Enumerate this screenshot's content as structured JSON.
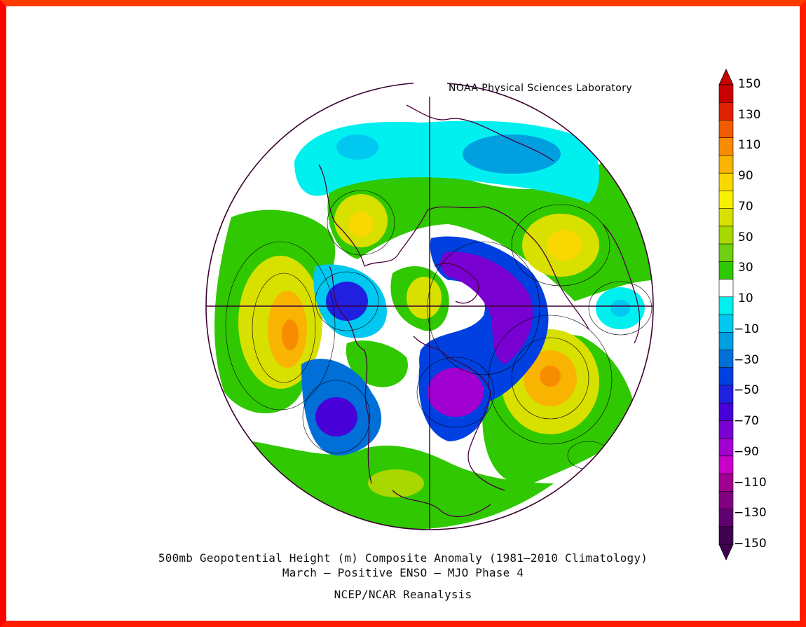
{
  "header_label": "NOAA Physical Sciences Laboratory",
  "caption": {
    "line1": "500mb Geopotential Height (m) Composite Anomaly (1981–2010 Climatology)",
    "line2": "March – Positive ENSO – MJO Phase 4",
    "line3": "NCEP/NCAR Reanalysis"
  },
  "colorbar": {
    "labels": [
      "150",
      "130",
      "110",
      "90",
      "70",
      "50",
      "30",
      "10",
      "−10",
      "−30",
      "−50",
      "−70",
      "−90",
      "−110",
      "−130",
      "−150"
    ],
    "colors": [
      "#c80000",
      "#e02000",
      "#f05a00",
      "#f88c00",
      "#f8b400",
      "#f8d800",
      "#f8f000",
      "#d8e000",
      "#a8d800",
      "#70d010",
      "#30c800",
      "#ffffff",
      "#00f0f0",
      "#00c8f0",
      "#00a0e0",
      "#0070d8",
      "#0040e0",
      "#2020e0",
      "#4800d8",
      "#7800d0",
      "#a000d0",
      "#c800c8",
      "#a00090",
      "#800080",
      "#600070",
      "#400050"
    ]
  },
  "map": {
    "projection": "north-polar-stereographic",
    "features": [
      "coastlines",
      "country-borders",
      "meridian-cross"
    ]
  }
}
